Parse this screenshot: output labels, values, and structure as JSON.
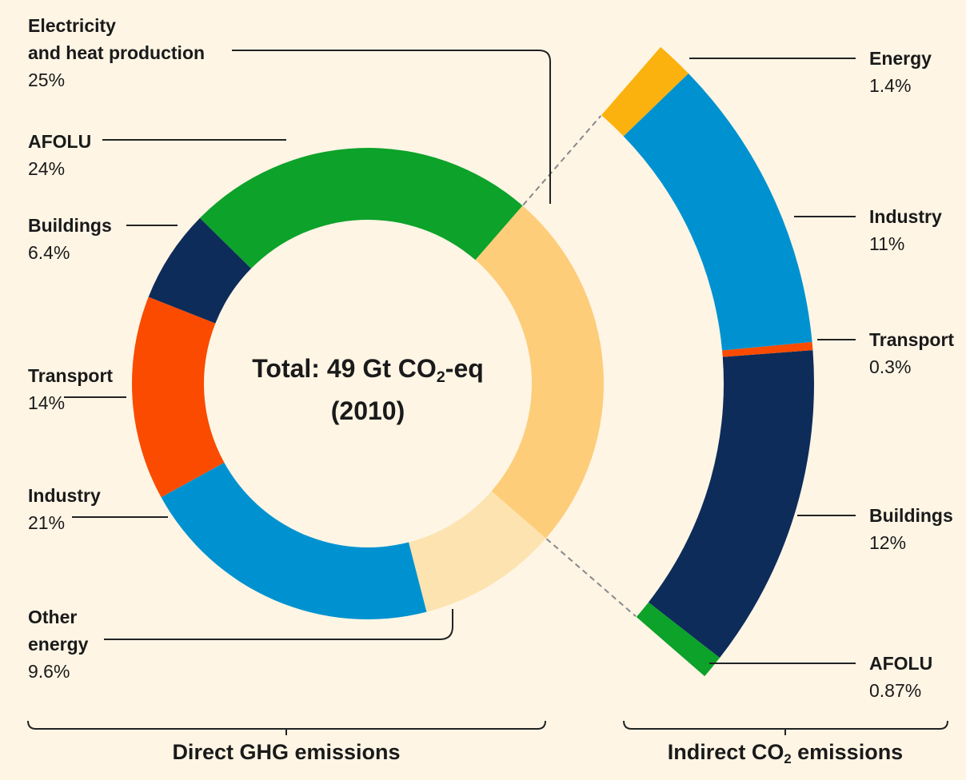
{
  "chart_data": [
    {
      "type": "donut",
      "categories": [
        "Electricity\nand heat production",
        "Other\nenergy",
        "Industry",
        "Transport",
        "Buildings",
        "AFOLU"
      ],
      "values": [
        25,
        9.6,
        21,
        14,
        6.4,
        24
      ],
      "value_labels": [
        "25%",
        "9.6%",
        "21%",
        "14%",
        "6.4%",
        "24%"
      ],
      "colors": [
        "#fdcd7a",
        "#fde3b0",
        "#0092d0",
        "#fa4b00",
        "#0d2c5a",
        "#0da22a"
      ],
      "center_text": [
        "Total: 49 Gt CO",
        "2",
        "-eq"
      ],
      "center_subtext": "(2010)",
      "label": "Direct GHG emissions"
    },
    {
      "type": "arc",
      "categories": [
        "Energy",
        "Industry",
        "Transport",
        "Buildings",
        "AFOLU"
      ],
      "values": [
        1.4,
        11,
        0.3,
        12,
        0.87
      ],
      "value_labels": [
        "1.4%",
        "11%",
        "0.3%",
        "12%",
        "0.87%"
      ],
      "colors": [
        "#fbb20f",
        "#0092d0",
        "#fa4b00",
        "#0d2c5a",
        "#0da22a"
      ],
      "label": [
        "Indirect CO",
        "2",
        " emissions"
      ]
    }
  ]
}
